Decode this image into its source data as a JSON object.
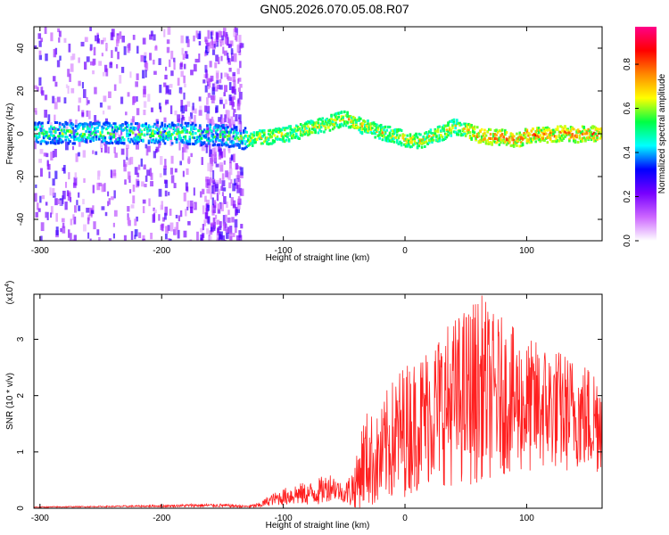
{
  "title": "GN05.2026.070.05.08.R07",
  "chart_data": [
    {
      "type": "heatmap",
      "xlabel": "Height of straight line (km)",
      "ylabel": "Frequency (Hz)",
      "xlim": [
        -305,
        162
      ],
      "ylim": [
        -50,
        50
      ],
      "xticks": [
        -300,
        -200,
        -100,
        0,
        100
      ],
      "yticks": [
        -40,
        -20,
        0,
        20,
        40
      ],
      "colorbar": {
        "label": "Normalized spectral amplitude",
        "range": [
          0,
          0.97
        ],
        "ticks": [
          0.0,
          0.2,
          0.4,
          0.6,
          0.8
        ],
        "tick_labels": [
          "0.0",
          "0.2",
          "0.4",
          "0.6",
          "0.8"
        ],
        "colors": [
          "#ffffff",
          "#cc66ff",
          "#7700ff",
          "#0000ff",
          "#00ffff",
          "#00ff44",
          "#ffff00",
          "#ff8800",
          "#ff0000",
          "#ff0088"
        ]
      },
      "ridge": {
        "x": [
          -305,
          -250,
          -200,
          -150,
          -130,
          -100,
          -80,
          -60,
          -50,
          -40,
          -30,
          -20,
          -10,
          0,
          10,
          20,
          30,
          40,
          50,
          60,
          70,
          80,
          90,
          100,
          110,
          120,
          130,
          140,
          150,
          162
        ],
        "frequency": [
          1,
          1,
          1,
          0,
          -2,
          0,
          3,
          6,
          8,
          5,
          3,
          1,
          0,
          -2,
          -3,
          -1,
          1,
          4,
          2,
          0,
          -1,
          -1,
          -3,
          0,
          0,
          0,
          1,
          0,
          1,
          0
        ]
      }
    },
    {
      "type": "line",
      "xlabel": "Height of straight line (km)",
      "ylabel": "SNR (10 * v/v)",
      "multiplier": "(x10",
      "multiplier_exp": "4",
      "xlim": [
        -305,
        162
      ],
      "ylim": [
        0,
        3.8
      ],
      "xticks": [
        -300,
        -200,
        -100,
        0,
        100
      ],
      "yticks": [
        0,
        1,
        2,
        3
      ],
      "series": [
        {
          "name": "SNR",
          "color": "#ff2020",
          "x": [
            -305,
            -250,
            -200,
            -170,
            -150,
            -130,
            -120,
            -110,
            -100,
            -90,
            -80,
            -70,
            -60,
            -50,
            -40,
            -35,
            -30,
            -25,
            -20,
            -15,
            -10,
            -5,
            0,
            10,
            20,
            30,
            40,
            50,
            60,
            65,
            70,
            80,
            90,
            100,
            110,
            120,
            130,
            140,
            150,
            162
          ],
          "y": [
            0.02,
            0.03,
            0.04,
            0.05,
            0.05,
            0.03,
            0.05,
            0.15,
            0.2,
            0.25,
            0.25,
            0.3,
            0.4,
            0.25,
            0.4,
            0.8,
            0.9,
            0.8,
            0.85,
            1.1,
            1.2,
            1.3,
            1.4,
            1.5,
            1.7,
            1.8,
            1.9,
            2.0,
            2.1,
            2.2,
            2.0,
            2.0,
            1.9,
            1.8,
            1.8,
            1.8,
            1.7,
            1.7,
            1.6,
            1.6
          ],
          "spread": [
            0.01,
            0.01,
            0.02,
            0.03,
            0.03,
            0.02,
            0.05,
            0.1,
            0.15,
            0.2,
            0.2,
            0.25,
            0.25,
            0.15,
            0.5,
            0.8,
            0.9,
            0.8,
            0.9,
            1.0,
            1.1,
            1.2,
            1.2,
            1.2,
            1.3,
            1.4,
            1.5,
            1.6,
            1.7,
            1.6,
            1.5,
            1.4,
            1.3,
            1.2,
            1.2,
            1.1,
            1.1,
            1.0,
            1.0,
            1.0
          ]
        }
      ]
    }
  ]
}
